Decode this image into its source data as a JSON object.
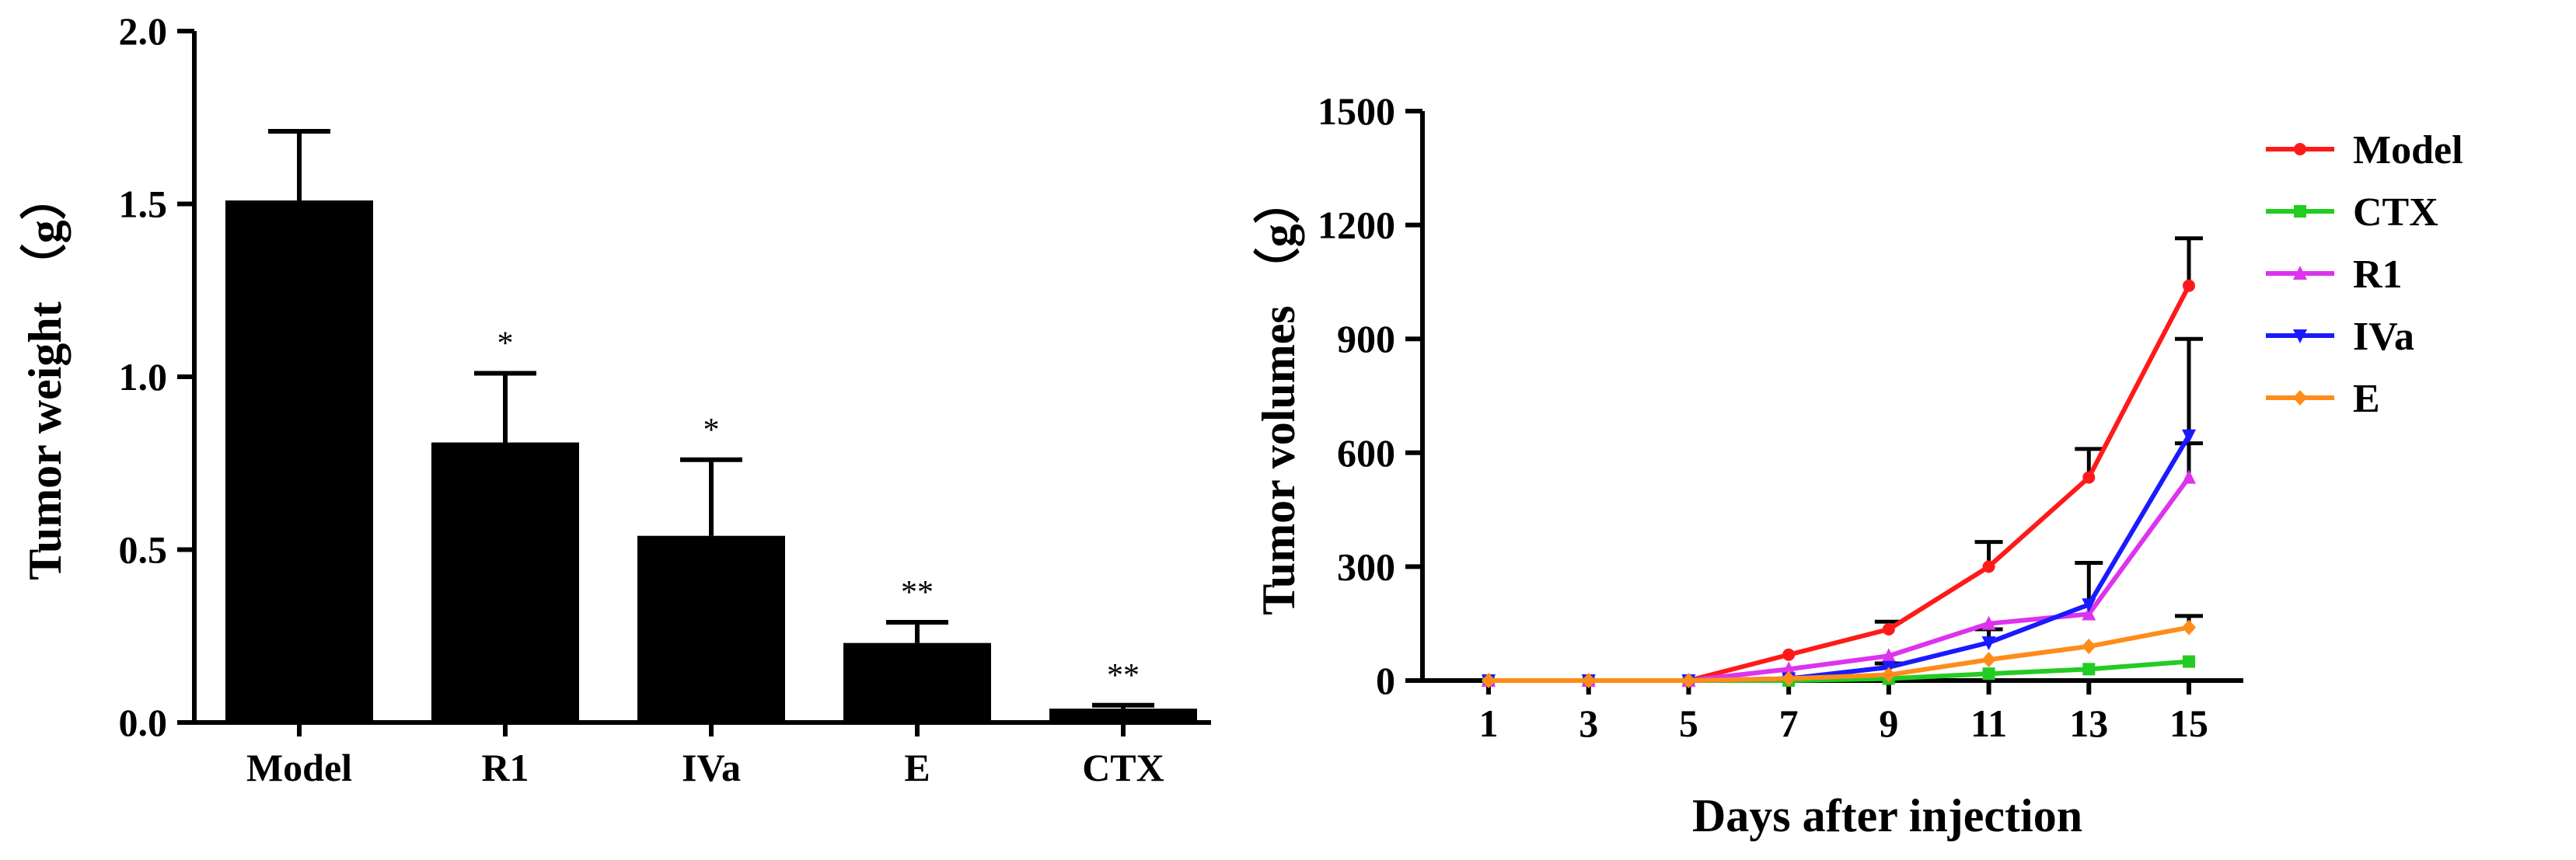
{
  "chart_data": [
    {
      "type": "bar",
      "ylabel": "Tumor weight （g）",
      "xlabel": "",
      "categories": [
        "Model",
        "R1",
        "IVa",
        "E",
        "CTX"
      ],
      "values": [
        1.51,
        0.81,
        0.54,
        0.23,
        0.04
      ],
      "errors": [
        0.2,
        0.2,
        0.22,
        0.06,
        0.01
      ],
      "significance": [
        "",
        "*",
        "*",
        "**",
        "**"
      ],
      "ylim": [
        0,
        2.0
      ],
      "yticks": [
        "0.0",
        "0.5",
        "1.0",
        "1.5",
        "2.0"
      ],
      "colors": {
        "bar": "#000000"
      },
      "grid": false
    },
    {
      "type": "line",
      "xlabel": "Days after injection",
      "ylabel": "Tumor volumes （g）",
      "x": [
        1,
        3,
        5,
        7,
        9,
        11,
        13,
        15
      ],
      "xticks": [
        "1",
        "3",
        "5",
        "7",
        "9",
        "11",
        "13",
        "15"
      ],
      "ylim": [
        0,
        1500
      ],
      "yticks": [
        "0",
        "300",
        "600",
        "900",
        "1200",
        "1500"
      ],
      "legend_position": "right",
      "grid": false,
      "series": [
        {
          "name": "Model",
          "color": "#ff1a1a",
          "marker": "circle",
          "values": [
            0,
            0,
            0,
            68,
            135,
            300,
            535,
            1040
          ],
          "errors": [
            0,
            0,
            0,
            0,
            20,
            65,
            75,
            125
          ]
        },
        {
          "name": "CTX",
          "color": "#22cc22",
          "marker": "square",
          "values": [
            0,
            0,
            0,
            0,
            5,
            18,
            30,
            50
          ],
          "errors": [
            0,
            0,
            0,
            0,
            0,
            0,
            0,
            0
          ]
        },
        {
          "name": "R1",
          "color": "#dd33ee",
          "marker": "triangle-up",
          "values": [
            0,
            0,
            0,
            30,
            65,
            150,
            175,
            535
          ],
          "errors": [
            0,
            0,
            0,
            0,
            0,
            0,
            0,
            90
          ]
        },
        {
          "name": "IVa",
          "color": "#1a1aff",
          "marker": "triangle-down",
          "values": [
            0,
            0,
            0,
            5,
            35,
            100,
            200,
            645
          ],
          "errors": [
            0,
            0,
            0,
            0,
            10,
            35,
            110,
            255
          ]
        },
        {
          "name": "E",
          "color": "#ff8c1a",
          "marker": "diamond",
          "values": [
            0,
            0,
            0,
            5,
            15,
            55,
            90,
            140
          ],
          "errors": [
            0,
            0,
            0,
            0,
            0,
            0,
            0,
            30
          ]
        }
      ]
    }
  ]
}
